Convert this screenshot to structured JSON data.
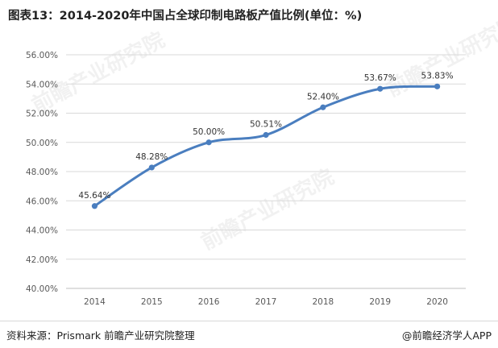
{
  "header": {
    "title": "图表13：2014-2020年中国占全球印制电路板产值比例(单位：%)"
  },
  "watermark": {
    "text": "前瞻产业研究院"
  },
  "footer": {
    "source": "资料来源：Prismark 前瞻产业研究院整理",
    "brand": "@前瞻经济学人APP"
  },
  "chart_data": {
    "type": "line",
    "title": "图表13：2014-2020年中国占全球印制电路板产值比例(单位：%)",
    "categories": [
      "2014",
      "2015",
      "2016",
      "2017",
      "2018",
      "2019",
      "2020"
    ],
    "series": [
      {
        "values": [
          45.64,
          48.28,
          50.0,
          50.51,
          52.4,
          53.67,
          53.83
        ],
        "labels": [
          "45.64%",
          "48.28%",
          "50.00%",
          "50.51%",
          "52.40%",
          "53.67%",
          "53.83%"
        ]
      }
    ],
    "ylim": [
      40,
      56
    ],
    "yticks": [
      40,
      42,
      44,
      46,
      48,
      50,
      52,
      54,
      56
    ],
    "ytick_labels": [
      "40.00%",
      "42.00%",
      "44.00%",
      "46.00%",
      "48.00%",
      "50.00%",
      "52.00%",
      "54.00%",
      "56.00%"
    ],
    "grid": true,
    "line_color": "#4a7ebf",
    "smooth": true,
    "xlabel": "",
    "ylabel": ""
  }
}
